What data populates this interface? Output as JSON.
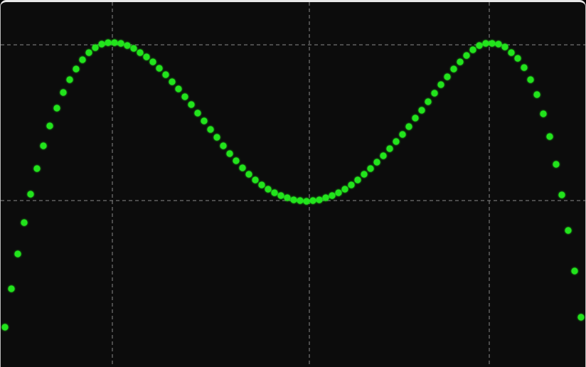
{
  "chart_data": {
    "type": "scatter",
    "x": [
      7,
      16,
      25,
      34,
      43,
      52,
      61,
      70,
      80,
      89,
      98,
      107,
      116,
      125,
      134,
      143,
      152,
      161,
      170,
      179,
      188,
      197,
      206,
      215,
      224,
      233,
      242,
      251,
      260,
      269,
      278,
      287,
      296,
      305,
      314,
      323,
      332,
      341,
      350,
      359,
      368,
      377,
      386,
      395,
      404,
      413,
      422,
      431,
      440,
      449,
      458,
      467,
      476,
      485,
      494,
      503,
      512,
      521,
      530,
      539,
      548,
      557,
      566,
      575,
      584,
      593,
      602,
      611,
      620,
      629,
      638,
      647,
      656,
      665,
      674,
      683,
      692,
      701,
      710,
      719,
      728,
      737,
      746,
      755,
      764,
      773,
      782,
      790,
      799,
      808,
      817
    ],
    "values": [
      56,
      110,
      159,
      203,
      243,
      279,
      311,
      339,
      364,
      386,
      404,
      419,
      432,
      442,
      449,
      454,
      456,
      456,
      455,
      452,
      448,
      442,
      436,
      429,
      420,
      411,
      401,
      391,
      380,
      369,
      357,
      346,
      334,
      323,
      311,
      300,
      290,
      280,
      271,
      263,
      256,
      250,
      245,
      241,
      238,
      235,
      234,
      233,
      234,
      235,
      238,
      241,
      245,
      250,
      256,
      263,
      271,
      279,
      288,
      297,
      307,
      317,
      327,
      338,
      350,
      361,
      373,
      385,
      397,
      408,
      419,
      429,
      438,
      446,
      452,
      455,
      455,
      454,
      450,
      442,
      434,
      421,
      404,
      383,
      356,
      324,
      285,
      242,
      192,
      135,
      70
    ],
    "color": "#22e41e",
    "xlim": [
      0,
      824
    ],
    "ylim": [
      0,
      516
    ],
    "xticks": [
      158,
      435,
      688
    ],
    "yticks": [
      234,
      453
    ],
    "grid": true
  }
}
